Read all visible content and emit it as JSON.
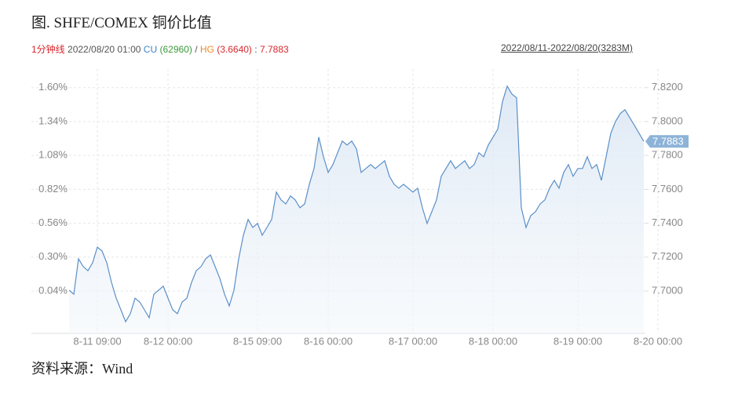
{
  "chart_data": {
    "type": "area",
    "title": "图. SHFE/COMEX 铜价比值",
    "info": {
      "period": "1分钟线",
      "time": "2022/08/20 01:00",
      "cu_label": "CU",
      "cu_value": "(62960)",
      "sep": "/",
      "hg_label": "HG",
      "hg_value": "(3.6640)",
      "sep2": ":"
    },
    "range": "2022/08/11-2022/08/20(3283M)",
    "source": "资料来源：Wind",
    "categories": [
      null,
      null,
      null,
      null,
      null,
      null,
      "8-11 09:00",
      null,
      null,
      null,
      null,
      null,
      null,
      null,
      null,
      null,
      null,
      null,
      null,
      null,
      null,
      "8-12 00:00",
      null,
      null,
      null,
      null,
      null,
      null,
      null,
      null,
      null,
      null,
      null,
      null,
      null,
      null,
      null,
      null,
      null,
      null,
      "8-15 09:00",
      null,
      null,
      null,
      null,
      null,
      null,
      null,
      null,
      null,
      null,
      null,
      null,
      null,
      null,
      "8-16 00:00",
      null,
      null,
      null,
      null,
      null,
      null,
      null,
      null,
      null,
      null,
      null,
      null,
      null,
      null,
      null,
      null,
      null,
      "8-17 00:00",
      null,
      null,
      null,
      null,
      null,
      null,
      null,
      null,
      null,
      null,
      null,
      null,
      null,
      null,
      null,
      null,
      "8-18 00:00",
      null,
      null,
      null,
      null,
      null,
      null,
      null,
      null,
      null,
      null,
      null,
      null,
      null,
      null,
      null,
      null,
      null,
      "8-19 00:00",
      null,
      null,
      null,
      null,
      null,
      null,
      null,
      null,
      null,
      null,
      null,
      null,
      null,
      null,
      null,
      null,
      "8-20 00:00"
    ],
    "series": [
      {
        "color": "#5b8fc7",
        "axis": "y2",
        "values": [
          7.7005,
          7.6981,
          7.719,
          7.7144,
          7.712,
          7.7167,
          7.7259,
          7.7236,
          7.7167,
          7.7051,
          7.6958,
          7.6889,
          7.6819,
          7.6866,
          7.6958,
          7.6935,
          7.6889,
          7.6842,
          7.6981,
          7.7005,
          7.7028,
          7.6958,
          7.6889,
          7.6866,
          7.6935,
          7.6958,
          7.7051,
          7.712,
          7.7144,
          7.719,
          7.7213,
          7.7144,
          7.7074,
          7.6981,
          7.6912,
          7.7005,
          7.719,
          7.7329,
          7.7422,
          7.7375,
          7.7399,
          7.7329,
          7.7375,
          7.7422,
          7.7584,
          7.7538,
          7.7514,
          7.7561,
          7.7538,
          7.7491,
          7.7514,
          7.763,
          7.7723,
          7.7908,
          7.7792,
          7.77,
          7.7746,
          7.7816,
          7.7885,
          7.7862,
          7.7885,
          7.7839,
          7.77,
          7.7723,
          7.7746,
          7.7723,
          7.7746,
          7.7769,
          7.7677,
          7.763,
          7.7607,
          7.763,
          7.7607,
          7.7584,
          7.7607,
          7.7491,
          7.7399,
          7.7468,
          7.7538,
          7.7677,
          7.7723,
          7.7769,
          7.7723,
          7.7746,
          7.7769,
          7.7723,
          7.7746,
          7.7816,
          7.7792,
          7.7862,
          7.7908,
          7.7955,
          7.8117,
          7.8209,
          7.8163,
          7.814,
          7.7491,
          7.7375,
          7.7445,
          7.7468,
          7.7514,
          7.7538,
          7.7607,
          7.7653,
          7.7607,
          7.77,
          7.7746,
          7.7677,
          7.7723,
          7.7723,
          7.7792,
          7.7723,
          7.7746,
          7.7653,
          7.7792,
          7.7931,
          7.8001,
          7.8047,
          7.807,
          7.8024,
          7.7978,
          7.7931,
          7.7883,
          null,
          null,
          null
        ]
      }
    ],
    "ylim": [
      -0.285,
      1.743
    ],
    "yticks": [
      {
        "value": 0.04,
        "label": "0.04%"
      },
      {
        "value": 0.3,
        "label": "0.30%"
      },
      {
        "value": 0.56,
        "label": "0.56%"
      },
      {
        "value": 0.82,
        "label": "0.82%"
      },
      {
        "value": 1.08,
        "label": "1.08%"
      },
      {
        "value": 1.34,
        "label": "1.34%"
      },
      {
        "value": 1.6,
        "label": "1.60%"
      }
    ],
    "y2lim": [
      7.675,
      7.831
    ],
    "y2ticks": [
      {
        "value": 7.7,
        "label": "7.7000"
      },
      {
        "value": 7.72,
        "label": "7.7200"
      },
      {
        "value": 7.74,
        "label": "7.7400"
      },
      {
        "value": 7.76,
        "label": "7.7600"
      },
      {
        "value": 7.78,
        "label": "7.7800"
      },
      {
        "value": 7.8,
        "label": "7.8000"
      },
      {
        "value": 7.82,
        "label": "7.8200"
      }
    ],
    "grid": true
  }
}
